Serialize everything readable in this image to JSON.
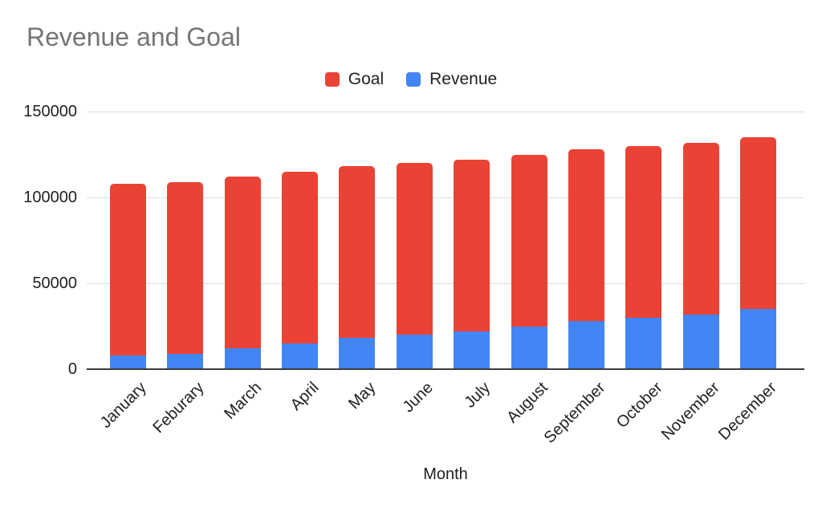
{
  "title": "Revenue and Goal",
  "legend": {
    "position": "top",
    "items": [
      {
        "label": "Goal",
        "color": "#EA4335"
      },
      {
        "label": "Revenue",
        "color": "#4285F4"
      }
    ]
  },
  "chart_data": {
    "type": "bar",
    "stacked": true,
    "title": "Revenue and Goal",
    "xlabel": "Month",
    "ylabel": "",
    "ylim": [
      0,
      150000
    ],
    "yticks": [
      0,
      50000,
      100000,
      150000
    ],
    "grid": true,
    "legend_position": "top",
    "categories": [
      "January",
      "Feburary",
      "March",
      "April",
      "May",
      "June",
      "July",
      "August",
      "September",
      "October",
      "November",
      "December"
    ],
    "series": [
      {
        "name": "Revenue",
        "color": "#4285F4",
        "stack_order": "bottom",
        "values": [
          8000,
          9000,
          12000,
          15000,
          18000,
          20000,
          22000,
          25000,
          28000,
          30000,
          32000,
          35000
        ]
      },
      {
        "name": "Goal",
        "color": "#EA4335",
        "stack_order": "top",
        "values": [
          100000,
          100000,
          100000,
          100000,
          100000,
          100000,
          100000,
          100000,
          100000,
          100000,
          100000,
          100000
        ]
      }
    ],
    "stacked_totals": [
      108000,
      109000,
      112000,
      115000,
      118000,
      120000,
      122000,
      125000,
      128000,
      130000,
      132000,
      135000
    ]
  },
  "colors": {
    "background": "#ffffff",
    "title_text": "#757575",
    "axis_text": "#202124",
    "gridline": "#dcdcdc",
    "axis_line": "#3c3c3c",
    "goal_red": "#EA4335",
    "revenue_blue": "#4285F4"
  }
}
